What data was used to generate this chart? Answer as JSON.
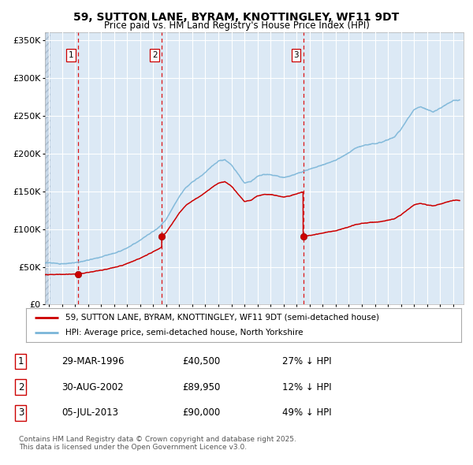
{
  "title": "59, SUTTON LANE, BYRAM, KNOTTINGLEY, WF11 9DT",
  "subtitle": "Price paid vs. HM Land Registry's House Price Index (HPI)",
  "background_color": "#dce9f5",
  "plot_bg_color": "#dce9f5",
  "grid_color": "#ffffff",
  "red_line_color": "#cc0000",
  "blue_line_color": "#7ab5d8",
  "red_dot_color": "#cc0000",
  "sale_dates": [
    1996.23,
    2002.66,
    2013.5
  ],
  "sale_prices": [
    40500,
    89950,
    90000
  ],
  "sale_labels": [
    "1",
    "2",
    "3"
  ],
  "legend_line1": "59, SUTTON LANE, BYRAM, KNOTTINGLEY, WF11 9DT (semi-detached house)",
  "legend_line2": "HPI: Average price, semi-detached house, North Yorkshire",
  "table_data": [
    [
      "1",
      "29-MAR-1996",
      "£40,500",
      "27% ↓ HPI"
    ],
    [
      "2",
      "30-AUG-2002",
      "£89,950",
      "12% ↓ HPI"
    ],
    [
      "3",
      "05-JUL-2013",
      "£90,000",
      "49% ↓ HPI"
    ]
  ],
  "footer": "Contains HM Land Registry data © Crown copyright and database right 2025.\nThis data is licensed under the Open Government Licence v3.0.",
  "ylim": [
    0,
    360000
  ],
  "yticks": [
    0,
    50000,
    100000,
    150000,
    200000,
    250000,
    300000,
    350000
  ],
  "ytick_labels": [
    "£0",
    "£50K",
    "£100K",
    "£150K",
    "£200K",
    "£250K",
    "£300K",
    "£350K"
  ],
  "xlim_start": 1993.7,
  "xlim_end": 2025.8,
  "hpi_years": [
    1993.7,
    1994.0,
    1994.5,
    1995.0,
    1995.5,
    1996.0,
    1996.5,
    1997.0,
    1997.5,
    1998.0,
    1998.5,
    1999.0,
    1999.5,
    2000.0,
    2000.5,
    2001.0,
    2001.5,
    2002.0,
    2002.5,
    2003.0,
    2003.5,
    2004.0,
    2004.5,
    2005.0,
    2005.5,
    2006.0,
    2006.5,
    2007.0,
    2007.5,
    2008.0,
    2008.5,
    2009.0,
    2009.5,
    2010.0,
    2010.5,
    2011.0,
    2011.5,
    2012.0,
    2012.5,
    2013.0,
    2013.5,
    2014.0,
    2014.5,
    2015.0,
    2015.5,
    2016.0,
    2016.5,
    2017.0,
    2017.5,
    2018.0,
    2018.5,
    2019.0,
    2019.5,
    2020.0,
    2020.5,
    2021.0,
    2021.5,
    2022.0,
    2022.5,
    2023.0,
    2023.5,
    2024.0,
    2024.5,
    2025.0
  ],
  "hpi_prices": [
    55000,
    55500,
    54500,
    54000,
    54500,
    55500,
    57000,
    59000,
    61000,
    63000,
    65500,
    68000,
    71000,
    75000,
    80000,
    85000,
    91000,
    97000,
    103000,
    113000,
    128000,
    143000,
    155000,
    162000,
    168000,
    175000,
    183000,
    190000,
    192000,
    185000,
    173000,
    161000,
    163000,
    170000,
    172000,
    172000,
    170000,
    168000,
    170000,
    173000,
    176000,
    179000,
    182000,
    185000,
    188000,
    191000,
    196000,
    201000,
    207000,
    210000,
    212000,
    213000,
    215000,
    218000,
    222000,
    232000,
    245000,
    258000,
    262000,
    258000,
    255000,
    260000,
    265000,
    270000
  ]
}
